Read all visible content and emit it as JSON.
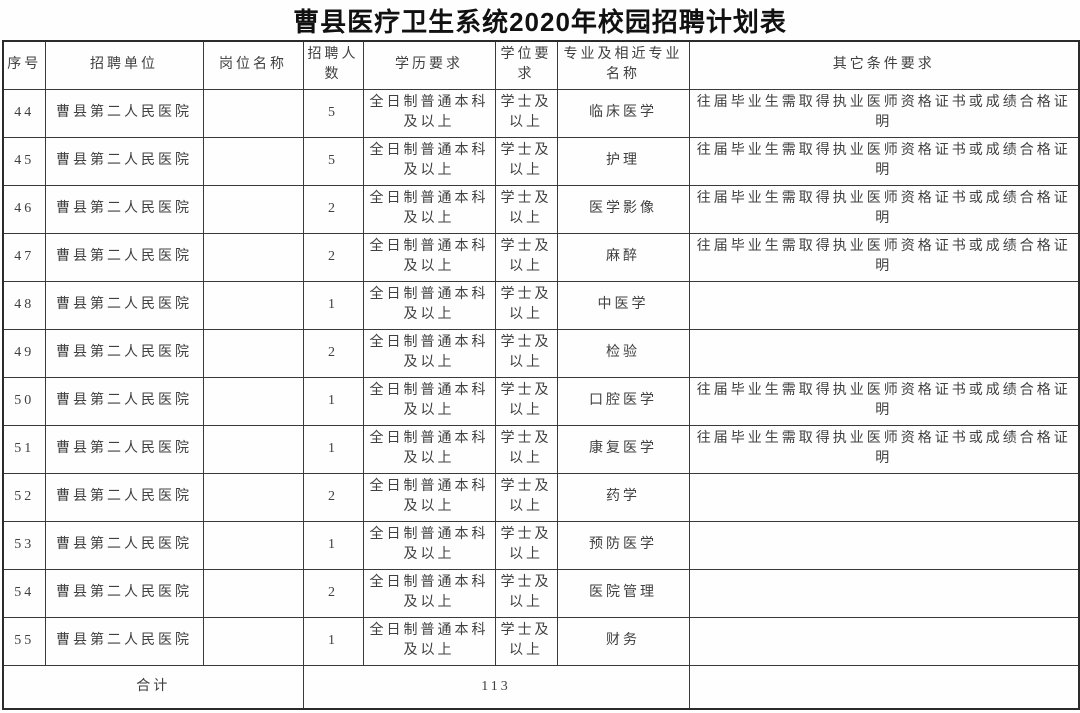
{
  "title": "曹县医疗卫生系统2020年校园招聘计划表",
  "table": {
    "headers": {
      "seq": "序号",
      "unit": "招聘单位",
      "position": "岗位名称",
      "count": "招聘人数",
      "education": "学历要求",
      "degree": "学位要求",
      "major": "专业及相近专业名称",
      "other": "其它条件要求"
    },
    "rows": [
      {
        "seq": "44",
        "unit": "曹县第二人民医院",
        "position": "",
        "count": "5",
        "education": "全日制普通本科及以上",
        "degree": "学士及以上",
        "major": "临床医学",
        "other": "往届毕业生需取得执业医师资格证书或成绩合格证明"
      },
      {
        "seq": "45",
        "unit": "曹县第二人民医院",
        "position": "",
        "count": "5",
        "education": "全日制普通本科及以上",
        "degree": "学士及以上",
        "major": "护理",
        "other": "往届毕业生需取得执业医师资格证书或成绩合格证明"
      },
      {
        "seq": "46",
        "unit": "曹县第二人民医院",
        "position": "",
        "count": "2",
        "education": "全日制普通本科及以上",
        "degree": "学士及以上",
        "major": "医学影像",
        "other": "往届毕业生需取得执业医师资格证书或成绩合格证明"
      },
      {
        "seq": "47",
        "unit": "曹县第二人民医院",
        "position": "",
        "count": "2",
        "education": "全日制普通本科及以上",
        "degree": "学士及以上",
        "major": "麻醉",
        "other": "往届毕业生需取得执业医师资格证书或成绩合格证明"
      },
      {
        "seq": "48",
        "unit": "曹县第二人民医院",
        "position": "",
        "count": "1",
        "education": "全日制普通本科及以上",
        "degree": "学士及以上",
        "major": "中医学",
        "other": ""
      },
      {
        "seq": "49",
        "unit": "曹县第二人民医院",
        "position": "",
        "count": "2",
        "education": "全日制普通本科及以上",
        "degree": "学士及以上",
        "major": "检验",
        "other": ""
      },
      {
        "seq": "50",
        "unit": "曹县第二人民医院",
        "position": "",
        "count": "1",
        "education": "全日制普通本科及以上",
        "degree": "学士及以上",
        "major": "口腔医学",
        "other": "往届毕业生需取得执业医师资格证书或成绩合格证明"
      },
      {
        "seq": "51",
        "unit": "曹县第二人民医院",
        "position": "",
        "count": "1",
        "education": "全日制普通本科及以上",
        "degree": "学士及以上",
        "major": "康复医学",
        "other": "往届毕业生需取得执业医师资格证书或成绩合格证明"
      },
      {
        "seq": "52",
        "unit": "曹县第二人民医院",
        "position": "",
        "count": "2",
        "education": "全日制普通本科及以上",
        "degree": "学士及以上",
        "major": "药学",
        "other": ""
      },
      {
        "seq": "53",
        "unit": "曹县第二人民医院",
        "position": "",
        "count": "1",
        "education": "全日制普通本科及以上",
        "degree": "学士及以上",
        "major": "预防医学",
        "other": ""
      },
      {
        "seq": "54",
        "unit": "曹县第二人民医院",
        "position": "",
        "count": "2",
        "education": "全日制普通本科及以上",
        "degree": "学士及以上",
        "major": "医院管理",
        "other": ""
      },
      {
        "seq": "55",
        "unit": "曹县第二人民医院",
        "position": "",
        "count": "1",
        "education": "全日制普通本科及以上",
        "degree": "学士及以上",
        "major": "财务",
        "other": ""
      }
    ],
    "footer": {
      "label": "合计",
      "total": "113",
      "other": ""
    }
  }
}
